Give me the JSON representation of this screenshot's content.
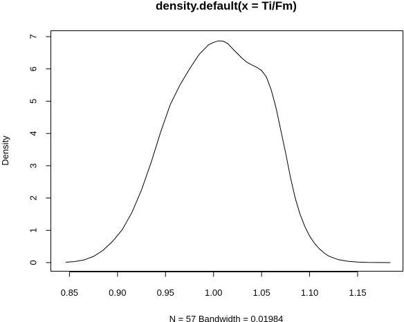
{
  "chart_data": {
    "type": "line",
    "title": "density.default(x = Ti/Fm)",
    "xlabel": "N = 57   Bandwidth = 0.01984",
    "ylabel": "Density",
    "xlim": [
      0.846,
      1.184
    ],
    "ylim": [
      0,
      7
    ],
    "grid": false,
    "x_ticks": [
      "0.85",
      "0.90",
      "0.95",
      "1.00",
      "1.05",
      "1.10",
      "1.15"
    ],
    "y_ticks": [
      "0",
      "1",
      "2",
      "3",
      "4",
      "5",
      "6",
      "7"
    ],
    "series": [
      {
        "x": [
          0.846,
          0.855,
          0.865,
          0.875,
          0.885,
          0.895,
          0.905,
          0.915,
          0.925,
          0.935,
          0.945,
          0.955,
          0.965,
          0.975,
          0.985,
          0.995,
          1.0,
          1.005,
          1.01,
          1.015,
          1.02,
          1.025,
          1.03,
          1.035,
          1.04,
          1.045,
          1.05,
          1.055,
          1.06,
          1.065,
          1.07,
          1.075,
          1.08,
          1.085,
          1.09,
          1.095,
          1.1,
          1.105,
          1.11,
          1.115,
          1.12,
          1.13,
          1.14,
          1.15,
          1.16,
          1.17,
          1.184
        ],
        "y": [
          0.01,
          0.03,
          0.08,
          0.19,
          0.38,
          0.66,
          1.02,
          1.55,
          2.25,
          3.1,
          4.05,
          4.9,
          5.5,
          6.0,
          6.45,
          6.75,
          6.82,
          6.87,
          6.86,
          6.78,
          6.62,
          6.47,
          6.32,
          6.2,
          6.12,
          6.05,
          5.95,
          5.75,
          5.35,
          4.8,
          4.1,
          3.4,
          2.65,
          2.0,
          1.5,
          1.12,
          0.82,
          0.6,
          0.43,
          0.3,
          0.2,
          0.09,
          0.04,
          0.015,
          0.005,
          0.002,
          0.0
        ]
      }
    ]
  }
}
